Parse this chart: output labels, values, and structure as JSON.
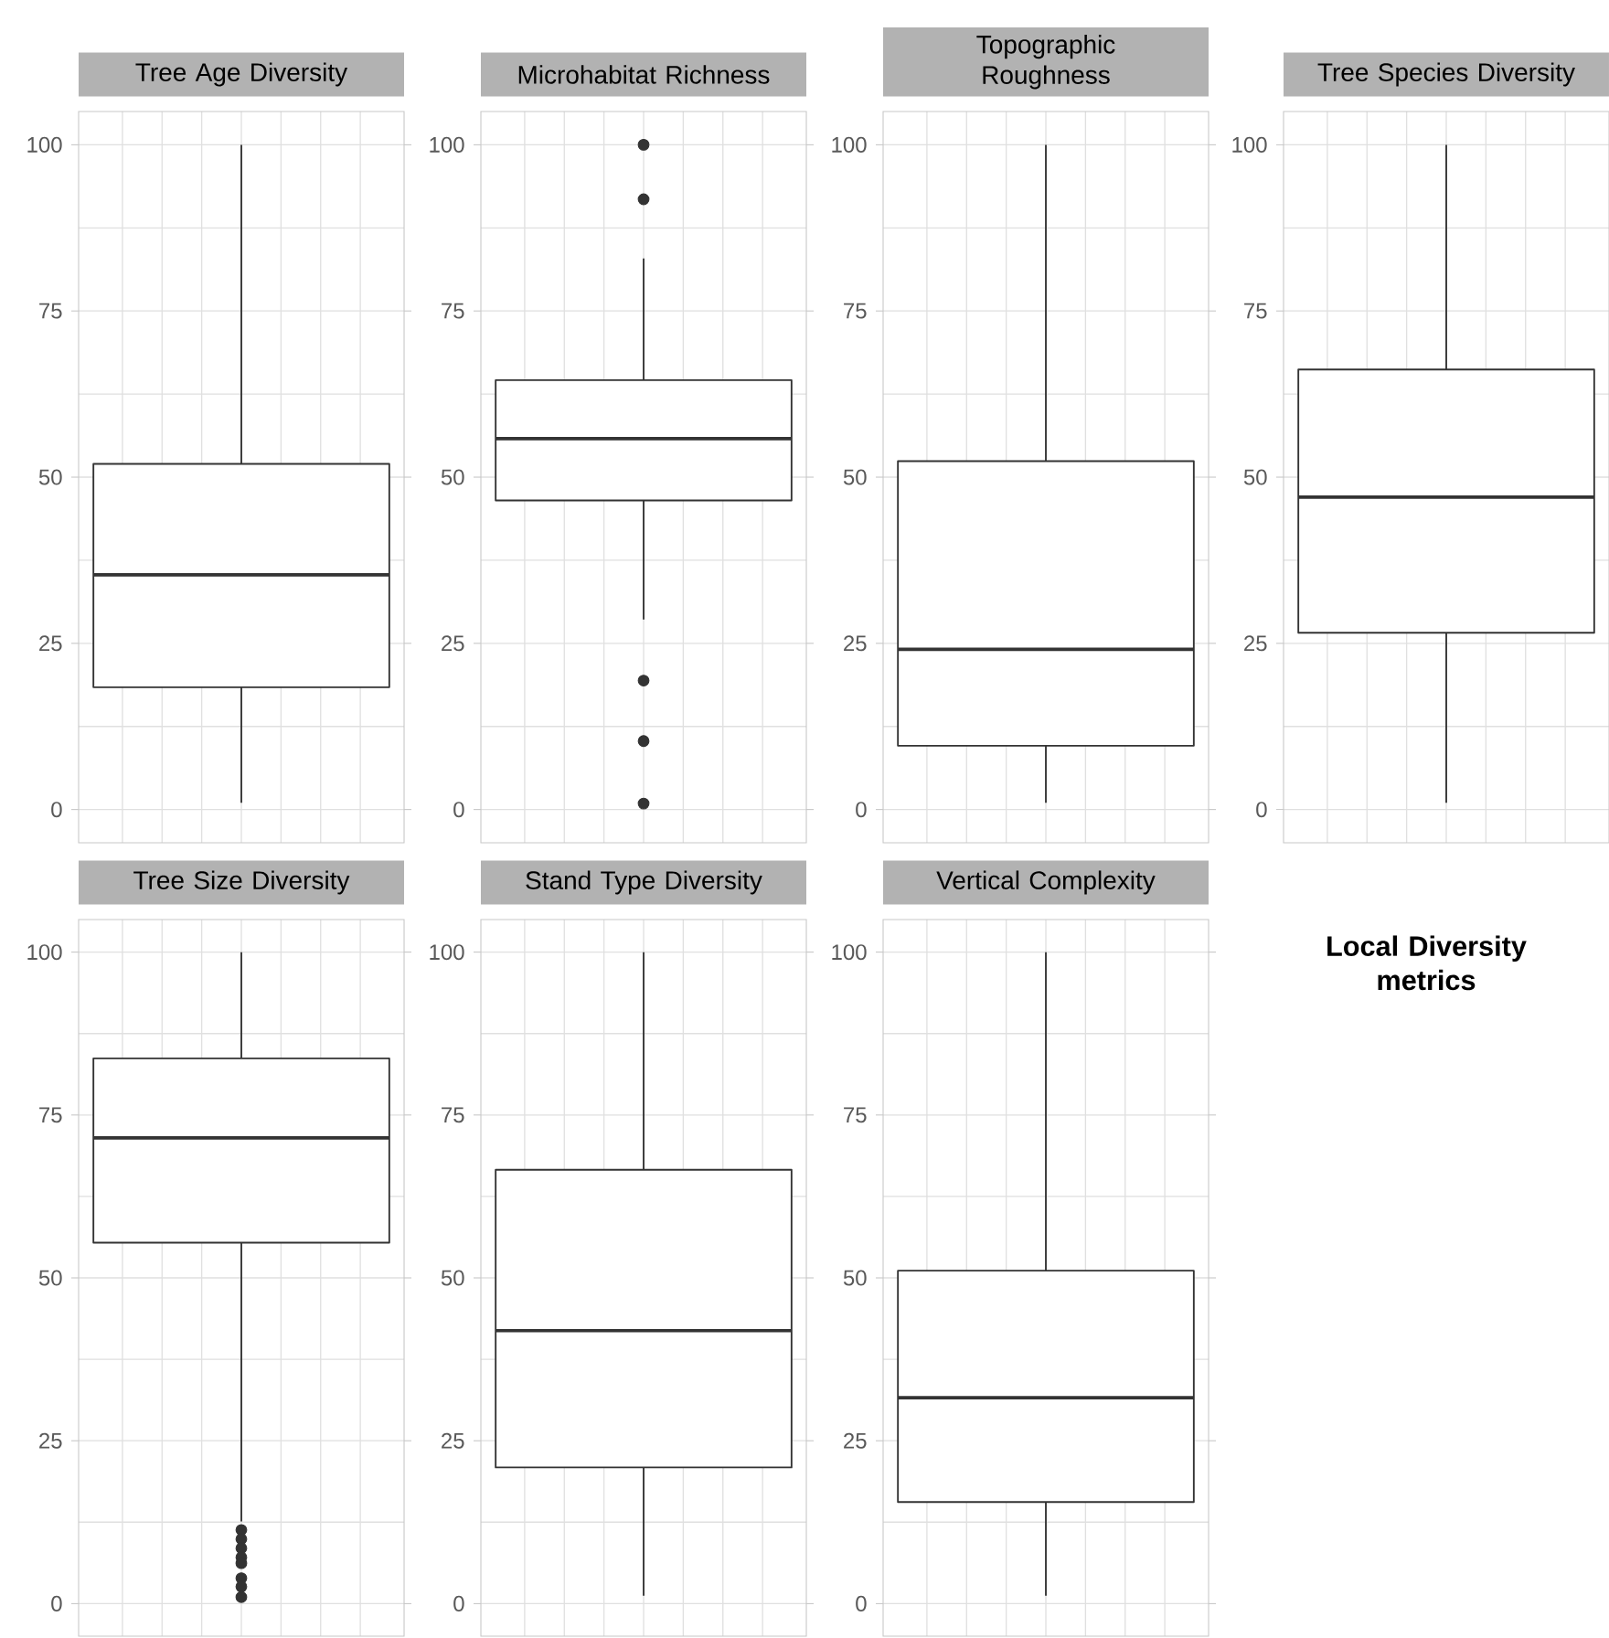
{
  "chart_data": [
    {
      "type": "box",
      "title": "Tree Age Diversity",
      "categories": [
        null
      ],
      "color": "#333333",
      "ylim": [
        -5,
        105
      ],
      "yticks": [
        0,
        25,
        50,
        75,
        100
      ],
      "grid": true,
      "boxes": [
        {
          "low": 1,
          "q1": 18.4,
          "median": 35.3,
          "q3": 52,
          "high": 100
        }
      ]
    },
    {
      "type": "box",
      "title": "Microhabitat Richness",
      "categories": [
        null
      ],
      "color": "#333333",
      "ylim": [
        -5,
        105
      ],
      "yticks": [
        0,
        25,
        50,
        75,
        100
      ],
      "grid": true,
      "boxes": [
        {
          "low": 28.6,
          "q1": 46.5,
          "median": 55.8,
          "q3": 64.6,
          "high": 82.9,
          "outliers": [
            100,
            91.8,
            19.4,
            10.3,
            0.9
          ]
        }
      ]
    },
    {
      "type": "box",
      "title": "Topographic Roughness",
      "categories": [
        null
      ],
      "color": "#333333",
      "ylim": [
        -5,
        105
      ],
      "yticks": [
        0,
        25,
        50,
        75,
        100
      ],
      "grid": true,
      "boxes": [
        {
          "low": 1,
          "q1": 9.6,
          "median": 24.1,
          "q3": 52.4,
          "high": 100
        }
      ]
    },
    {
      "type": "box",
      "title": "Tree Species Diversity",
      "categories": [
        null
      ],
      "color": "#333333",
      "ylim": [
        -5,
        105
      ],
      "yticks": [
        0,
        25,
        50,
        75,
        100
      ],
      "grid": true,
      "boxes": [
        {
          "low": 1,
          "q1": 26.6,
          "median": 47,
          "q3": 66.2,
          "high": 100
        }
      ]
    },
    {
      "type": "box",
      "title": "Tree Size Diversity",
      "categories": [
        null
      ],
      "color": "#333333",
      "ylim": [
        -5,
        105
      ],
      "yticks": [
        0,
        25,
        50,
        75,
        100
      ],
      "grid": true,
      "boxes": [
        {
          "low": 12.6,
          "q1": 55.4,
          "median": 71.5,
          "q3": 83.7,
          "high": 100,
          "outliers": [
            11.3,
            9.9,
            8.5,
            7.1,
            6.2,
            3.9,
            2.6,
            1
          ]
        }
      ]
    },
    {
      "type": "box",
      "title": "Stand Type Diversity",
      "categories": [
        null
      ],
      "color": "#333333",
      "ylim": [
        -5,
        105
      ],
      "yticks": [
        0,
        25,
        50,
        75,
        100
      ],
      "grid": true,
      "boxes": [
        {
          "low": 1.2,
          "q1": 20.9,
          "median": 41.9,
          "q3": 66.6,
          "high": 100
        }
      ]
    },
    {
      "type": "box",
      "title": "Vertical Complexity",
      "categories": [
        null
      ],
      "color": "#333333",
      "ylim": [
        -5,
        105
      ],
      "yticks": [
        0,
        25,
        50,
        75,
        100
      ],
      "grid": true,
      "boxes": [
        {
          "low": 1.2,
          "q1": 15.6,
          "median": 31.6,
          "q3": 51.1,
          "high": 100
        }
      ]
    },
    {
      "type": "other",
      "title": "Local Diversity metrics"
    }
  ]
}
